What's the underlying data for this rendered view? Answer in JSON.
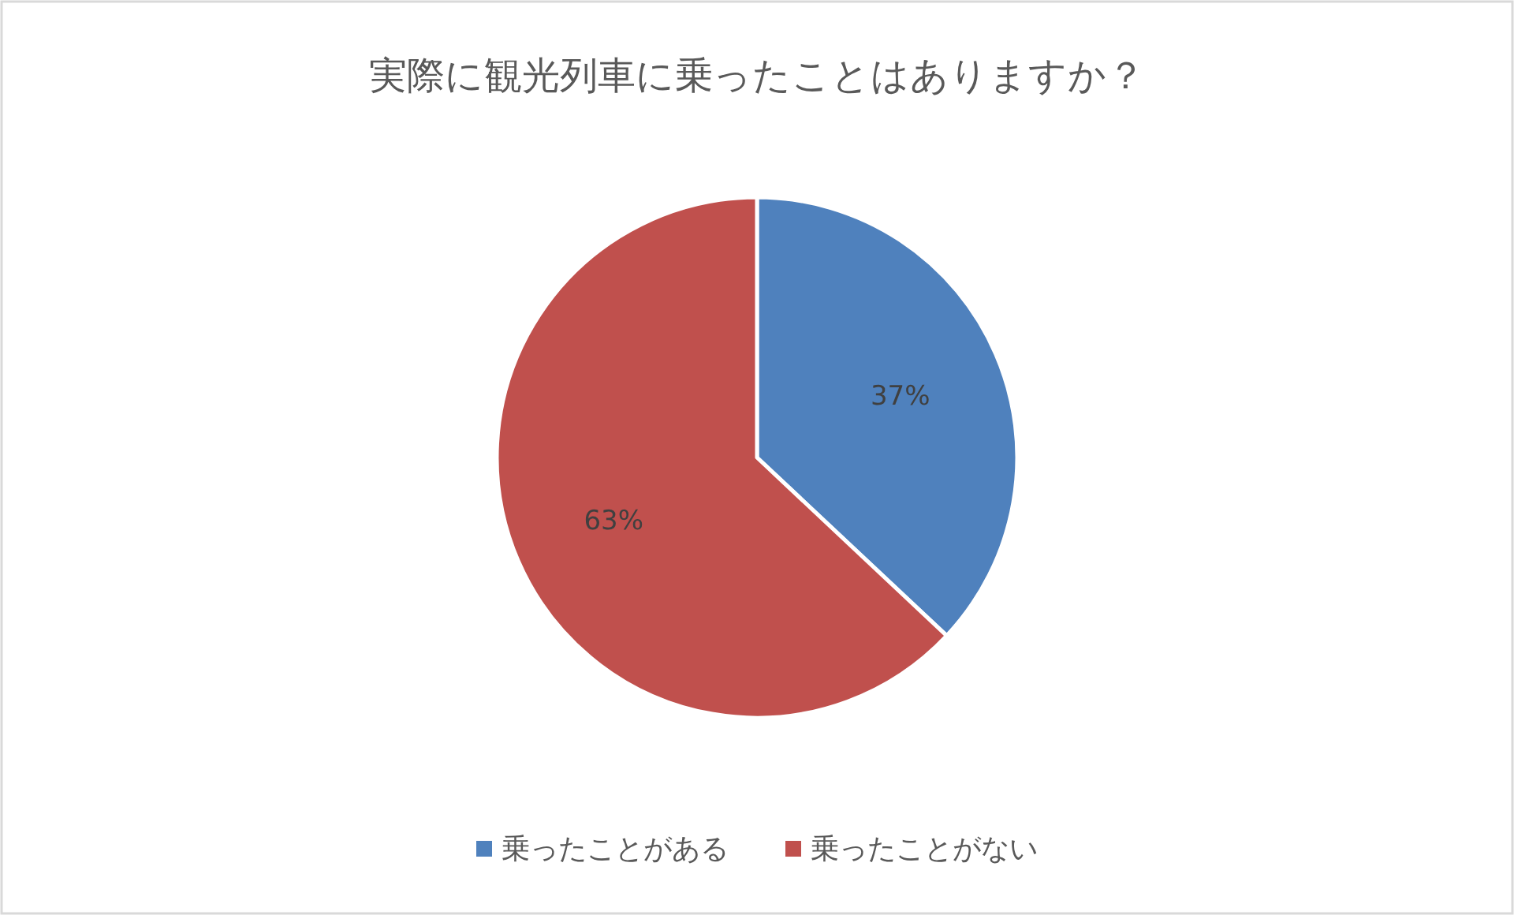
{
  "chart_data": {
    "type": "pie",
    "title": "実際に観光列車に乗ったことはありますか？",
    "categories": [
      "乗ったことがある",
      "乗ったことがない"
    ],
    "values": [
      37,
      63
    ],
    "colors": [
      "#4f81bd",
      "#c0504d"
    ],
    "value_labels": [
      "37%",
      "63%"
    ],
    "legend": "bottom"
  }
}
